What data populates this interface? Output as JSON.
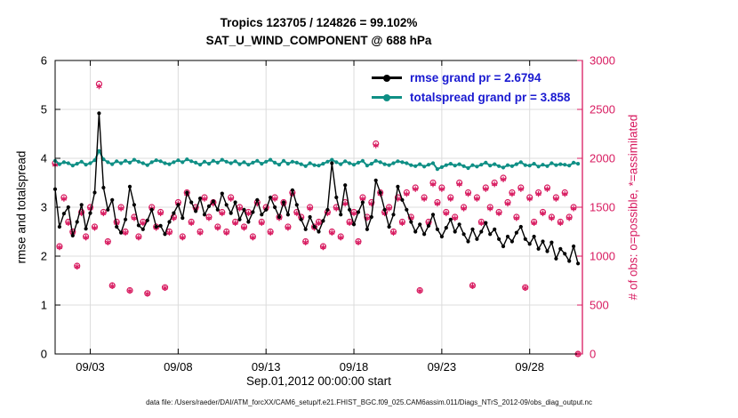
{
  "title": {
    "line1": "Tropics 123705 / 124826 = 99.102%",
    "line2": "SAT_U_WIND_COMPONENT @ 688 hPa"
  },
  "axes": {
    "left": {
      "label": "rmse and totalspread",
      "ticks": [
        0,
        1,
        2,
        3,
        4,
        5,
        6
      ],
      "range": [
        0,
        6
      ]
    },
    "right": {
      "label": "# of obs: o=possible, *=assimilated",
      "ticks": [
        0,
        500,
        1000,
        1500,
        2000,
        2500,
        3000
      ],
      "range": [
        0,
        3000
      ],
      "color": "#d81b60"
    },
    "x": {
      "label": "Sep.01,2012 00:00:00 start",
      "tick_labels": [
        "09/03",
        "09/08",
        "09/13",
        "09/18",
        "09/23",
        "09/28"
      ],
      "tick_days": [
        2,
        7,
        12,
        17,
        22,
        27
      ],
      "range_days": [
        0,
        30
      ],
      "grid": true
    }
  },
  "legend": [
    {
      "label": "rmse grand pr = 2.6794",
      "color": "#000000"
    },
    {
      "label": "totalspread grand pr = 3.858",
      "color": "#0f8f85"
    }
  ],
  "legend_text_color": "#1a1ad1",
  "caption": "data file: /Users/raeder/DAI/ATM_forcXX/CAM6_setup/f.e21.FHIST_BGC.f09_025.CAM6assim.011/Diags_NTrS_2012-09/obs_diag_output.nc",
  "chart_data": {
    "type": "line",
    "x_unit": "6-hourly assimilation steps from Sep.01,2012 00:00 (30 days)",
    "assimilated_fraction": 0.99102,
    "series": [
      {
        "name": "rmse",
        "axis": "left",
        "color": "#000000",
        "marker": "filled-circle",
        "values": [
          3.37,
          2.6,
          2.87,
          3.0,
          2.42,
          2.7,
          3.05,
          2.56,
          2.88,
          3.3,
          4.92,
          3.4,
          2.95,
          3.15,
          2.6,
          2.48,
          2.75,
          3.42,
          3.05,
          2.63,
          2.55,
          2.73,
          2.95,
          2.6,
          2.62,
          2.45,
          2.7,
          2.88,
          3.05,
          2.78,
          3.3,
          3.1,
          2.92,
          3.18,
          2.85,
          3.02,
          3.12,
          2.95,
          3.28,
          3.05,
          2.88,
          3.1,
          2.75,
          2.95,
          2.7,
          2.9,
          3.15,
          2.85,
          2.95,
          3.2,
          3.0,
          2.8,
          3.1,
          2.85,
          3.35,
          3.05,
          2.75,
          2.55,
          2.8,
          2.6,
          2.5,
          2.72,
          2.95,
          3.9,
          3.2,
          2.85,
          3.45,
          2.95,
          2.65,
          2.9,
          3.1,
          2.55,
          2.8,
          3.55,
          3.3,
          2.95,
          2.6,
          2.85,
          3.42,
          3.15,
          2.95,
          2.7,
          2.5,
          2.65,
          2.45,
          2.62,
          2.85,
          2.55,
          2.4,
          2.58,
          2.75,
          2.5,
          2.65,
          2.45,
          2.3,
          2.55,
          2.35,
          2.5,
          2.68,
          2.45,
          2.55,
          2.35,
          2.2,
          2.4,
          2.3,
          2.48,
          2.6,
          2.35,
          2.25,
          2.4,
          2.15,
          2.3,
          2.1,
          2.28,
          1.95,
          2.15,
          2.05,
          1.9,
          2.2,
          1.85
        ]
      },
      {
        "name": "totalspread",
        "axis": "left",
        "color": "#0f8f85",
        "marker": "filled-circle",
        "values": [
          3.95,
          3.88,
          3.92,
          3.9,
          3.85,
          3.89,
          3.93,
          3.87,
          3.9,
          3.96,
          4.15,
          3.98,
          3.92,
          3.88,
          3.94,
          3.9,
          3.95,
          3.91,
          3.97,
          3.93,
          3.9,
          3.86,
          3.92,
          3.96,
          3.94,
          3.9,
          3.88,
          3.92,
          3.96,
          3.92,
          3.98,
          3.94,
          3.91,
          3.87,
          3.93,
          3.89,
          3.95,
          3.91,
          3.97,
          3.93,
          3.9,
          3.94,
          3.88,
          3.92,
          3.87,
          3.91,
          3.95,
          3.89,
          3.93,
          3.97,
          3.91,
          3.87,
          3.95,
          3.89,
          3.93,
          3.91,
          3.88,
          3.84,
          3.9,
          3.86,
          3.85,
          3.89,
          3.93,
          3.97,
          3.92,
          3.88,
          3.94,
          3.9,
          3.87,
          3.91,
          3.95,
          3.85,
          3.89,
          3.95,
          3.92,
          3.88,
          3.86,
          3.9,
          3.94,
          3.92,
          3.9,
          3.86,
          3.84,
          3.88,
          3.83,
          3.87,
          3.9,
          3.78,
          3.82,
          3.86,
          3.89,
          3.85,
          3.88,
          3.84,
          3.8,
          3.86,
          3.83,
          3.87,
          3.91,
          3.85,
          3.88,
          3.84,
          3.81,
          3.86,
          3.84,
          3.88,
          3.92,
          3.86,
          3.85,
          3.89,
          3.83,
          3.87,
          3.84,
          3.9,
          3.86,
          3.88,
          3.87,
          3.85,
          3.91,
          3.89
        ]
      },
      {
        "name": "obs_possible",
        "axis": "right",
        "color": "#d81b60",
        "marker": "circle-and-asterisk",
        "values": [
          1950,
          1100,
          1600,
          1350,
          1250,
          900,
          1450,
          1200,
          1500,
          1300,
          2760,
          1450,
          1150,
          700,
          1350,
          1500,
          1250,
          650,
          1400,
          1200,
          1350,
          620,
          1500,
          1300,
          1450,
          680,
          1250,
          1400,
          1550,
          1200,
          1650,
          1350,
          1500,
          1250,
          1600,
          1400,
          1550,
          1300,
          1450,
          1250,
          1600,
          1350,
          1500,
          1300,
          1450,
          1200,
          1550,
          1350,
          1500,
          1250,
          1600,
          1400,
          1550,
          1300,
          1650,
          1450,
          1400,
          1150,
          1500,
          1300,
          1350,
          1100,
          1450,
          1250,
          1500,
          1200,
          1550,
          1350,
          1450,
          1150,
          1600,
          1400,
          1550,
          2150,
          1650,
          1450,
          1500,
          1250,
          1600,
          1350,
          1650,
          1400,
          1700,
          650,
          1600,
          1350,
          1750,
          1550,
          1700,
          1450,
          1600,
          1400,
          1750,
          1500,
          1650,
          700,
          1600,
          1350,
          1700,
          1500,
          1750,
          1450,
          1800,
          1550,
          1650,
          1400,
          1700,
          680,
          1600,
          1350,
          1650,
          1450,
          1700,
          1400,
          1600,
          1350,
          1650,
          1400,
          1500,
          0
        ]
      }
    ]
  }
}
